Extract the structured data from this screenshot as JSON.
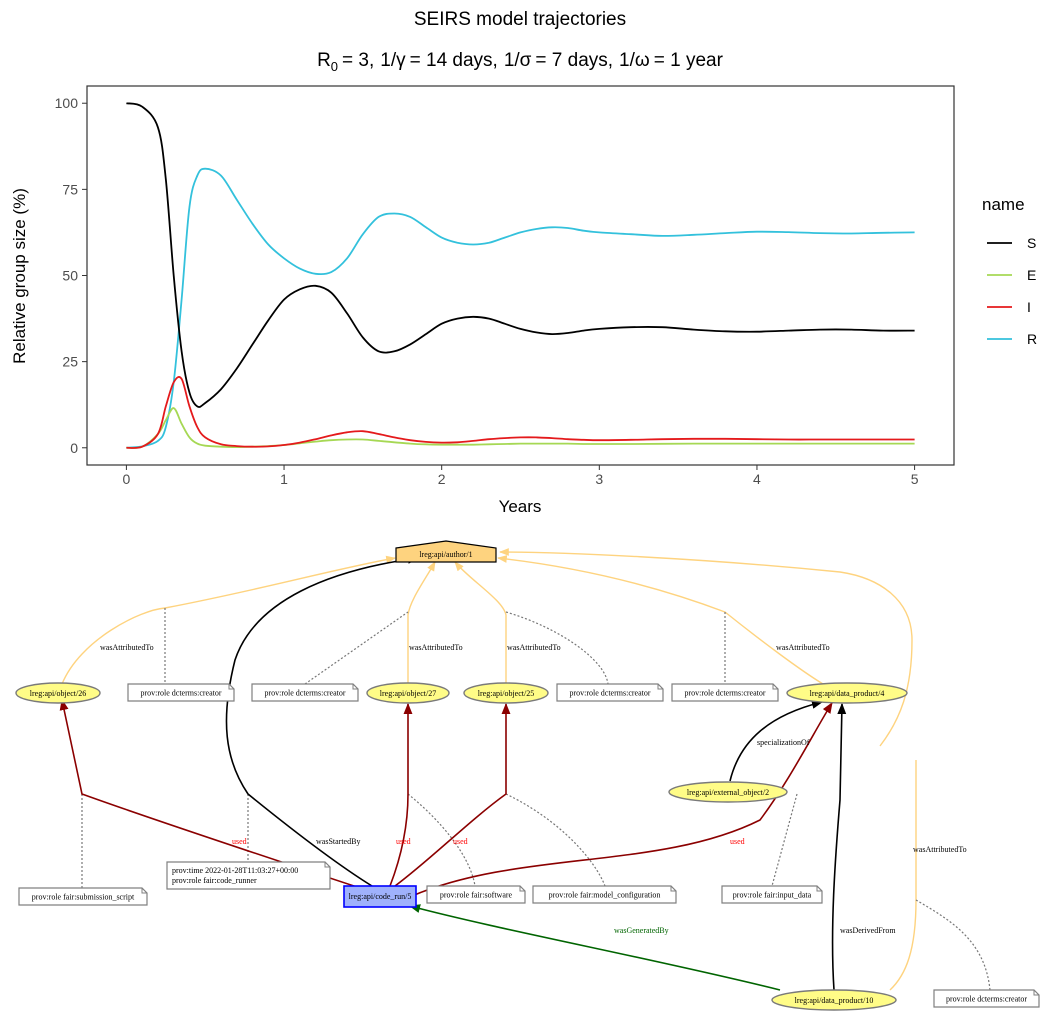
{
  "chart_data": {
    "type": "line",
    "title": "SEIRS model trajectories",
    "subtitle": {
      "r_symbol": "R",
      "r_sub": "0",
      "r_value": "= 3,",
      "gamma_label": "1/γ",
      "gamma_value": "= 14 days,",
      "sigma_label": "1/σ",
      "sigma_value": "= 7 days,",
      "omega_label": "1/ω",
      "omega_value": "= 1 year"
    },
    "xlabel": "Years",
    "ylabel": "Relative group size (%)",
    "xlim": [
      -0.25,
      5.25
    ],
    "ylim": [
      -5,
      105
    ],
    "xticks": [
      0,
      1,
      2,
      3,
      4,
      5
    ],
    "yticks": [
      0,
      25,
      50,
      75,
      100
    ],
    "legend": {
      "title": "name",
      "position": "right"
    },
    "x": [
      0,
      0.1,
      0.2,
      0.25,
      0.3,
      0.35,
      0.4,
      0.45,
      0.5,
      0.6,
      0.7,
      0.8,
      0.9,
      1.0,
      1.1,
      1.2,
      1.3,
      1.4,
      1.5,
      1.6,
      1.7,
      1.8,
      1.9,
      2.0,
      2.1,
      2.2,
      2.3,
      2.4,
      2.5,
      2.6,
      2.7,
      2.8,
      2.9,
      3.0,
      3.2,
      3.4,
      3.6,
      3.8,
      4.0,
      4.2,
      4.4,
      4.6,
      4.8,
      5.0
    ],
    "series": [
      {
        "name": "S",
        "color": "#000000",
        "values": [
          100,
          99,
          93,
          78,
          50,
          28,
          16,
          12,
          13,
          17,
          23,
          30,
          37,
          43,
          46,
          47,
          45,
          39,
          32,
          28,
          28,
          30,
          33,
          36,
          37.5,
          38,
          37.5,
          36,
          34.5,
          33.5,
          33,
          33.3,
          34,
          34.5,
          35,
          35,
          34.3,
          33.8,
          33.7,
          34,
          34.3,
          34.3,
          34,
          34
        ]
      },
      {
        "name": "E",
        "color": "#a6d854",
        "values": [
          0,
          0.3,
          4,
          8,
          11.5,
          7,
          3,
          1.2,
          0.6,
          0.3,
          0.2,
          0.3,
          0.5,
          0.8,
          1.3,
          1.8,
          2.2,
          2.4,
          2.4,
          2,
          1.6,
          1.2,
          1,
          0.9,
          0.9,
          0.9,
          1,
          1.1,
          1.2,
          1.2,
          1.2,
          1.2,
          1.1,
          1.1,
          1.1,
          1.15,
          1.2,
          1.2,
          1.2,
          1.2,
          1.2,
          1.2,
          1.2,
          1.2
        ]
      },
      {
        "name": "I",
        "color": "#e41a1c",
        "values": [
          0,
          0.3,
          4,
          12,
          19,
          20,
          12,
          6,
          3,
          1,
          0.5,
          0.3,
          0.4,
          0.8,
          1.5,
          2.5,
          3.6,
          4.5,
          4.8,
          4,
          3,
          2.2,
          1.7,
          1.5,
          1.6,
          2,
          2.5,
          2.8,
          3,
          3,
          2.8,
          2.5,
          2.3,
          2.2,
          2.3,
          2.5,
          2.6,
          2.6,
          2.5,
          2.4,
          2.4,
          2.4,
          2.4,
          2.4
        ]
      },
      {
        "name": "R",
        "color": "#33c1dc",
        "values": [
          0,
          0.4,
          2,
          6,
          19,
          43,
          70,
          79,
          81,
          79,
          72,
          65,
          59,
          55,
          52,
          50.5,
          51,
          55,
          62,
          67,
          68,
          67,
          64,
          61,
          59.5,
          59,
          59.5,
          61,
          62.5,
          63.5,
          64,
          63.8,
          63,
          62.5,
          62,
          61.5,
          61.8,
          62.3,
          62.7,
          62.6,
          62.3,
          62.2,
          62.4,
          62.5
        ]
      }
    ]
  },
  "provenance_graph": {
    "nodes": [
      {
        "id": "author",
        "label": "lreg:api/author/1",
        "kind": "agent",
        "fill": "#fed37f"
      },
      {
        "id": "obj26",
        "label": "lreg:api/object/26",
        "kind": "entity",
        "fill": "#fffc87"
      },
      {
        "id": "obj27",
        "label": "lreg:api/object/27",
        "kind": "entity",
        "fill": "#fffc87"
      },
      {
        "id": "obj25",
        "label": "lreg:api/object/25",
        "kind": "entity",
        "fill": "#fffc87"
      },
      {
        "id": "dp4",
        "label": "lreg:api/data_product/4",
        "kind": "entity",
        "fill": "#fffc87"
      },
      {
        "id": "ext2",
        "label": "lreg:api/external_object/2",
        "kind": "entity",
        "fill": "#fffc87"
      },
      {
        "id": "run5",
        "label": "lreg:api/code_run/5",
        "kind": "activity",
        "fill": "#9fb1fc"
      },
      {
        "id": "dp10",
        "label": "lreg:api/data_product/10",
        "kind": "entity",
        "fill": "#fffc87"
      }
    ],
    "notes": [
      {
        "id": "n1",
        "text": "prov:role dcterms:creator"
      },
      {
        "id": "n2",
        "text": "prov:role dcterms:creator"
      },
      {
        "id": "n3",
        "text": "prov:role dcterms:creator"
      },
      {
        "id": "n4",
        "text": "prov:role dcterms:creator"
      },
      {
        "id": "n5",
        "text": "prov:role fair:submission_script"
      },
      {
        "id": "n6",
        "line1": "prov:time 2022-01-28T11:03:27+00:00",
        "line2": "prov:role fair:code_runner"
      },
      {
        "id": "n7",
        "text": "prov:role fair:software"
      },
      {
        "id": "n8",
        "text": "prov:role fair:model_configuration"
      },
      {
        "id": "n9",
        "text": "prov:role fair:input_data"
      },
      {
        "id": "n10",
        "text": "prov:role dcterms:creator"
      }
    ],
    "edge_labels": {
      "attributed": "wasAttributedTo",
      "used": "used",
      "started": "wasStartedBy",
      "specialization": "specializationOf",
      "generated": "wasGeneratedBy",
      "derived": "wasDerivedFrom"
    },
    "colors": {
      "attributed": "#fed37f",
      "used": "#8b0000",
      "started": "#000000",
      "generated": "#006400",
      "used_label": "#ff0000",
      "generated_label": "#006400"
    }
  }
}
